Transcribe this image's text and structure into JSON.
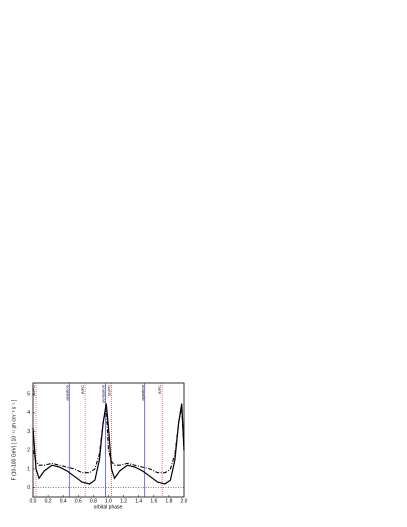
{
  "chart_data": {
    "type": "line",
    "xlabel": "orbital phase",
    "ylabel": "F (10-100 GeV) [ 10⁻¹¹ ph cm⁻² s⁻¹ ]",
    "x": [
      0,
      0.04,
      0.08,
      0.15,
      0.25,
      0.35,
      0.45,
      0.55,
      0.65,
      0.75,
      0.82,
      0.88,
      0.93,
      0.97,
      1.0,
      1.04,
      1.08,
      1.15,
      1.25,
      1.35,
      1.45,
      1.55,
      1.65,
      1.75,
      1.82,
      1.88,
      1.93,
      1.97,
      2.0
    ],
    "series": [
      {
        "color": "#000000",
        "dash": "solid",
        "values": [
          3.2,
          1.0,
          0.5,
          0.9,
          1.2,
          1.1,
          0.9,
          0.6,
          0.3,
          0.2,
          0.4,
          1.5,
          3.5,
          4.5,
          3.2,
          1.0,
          0.5,
          0.9,
          1.2,
          1.1,
          0.9,
          0.6,
          0.3,
          0.2,
          0.4,
          1.5,
          3.5,
          4.5,
          2.0
        ]
      },
      {
        "color": "#000000",
        "dash": "dashdot",
        "values": [
          2.0,
          1.4,
          1.2,
          1.2,
          1.3,
          1.2,
          1.1,
          1.0,
          0.8,
          0.8,
          1.0,
          1.8,
          3.5,
          4.3,
          2.0,
          1.4,
          1.2,
          1.2,
          1.3,
          1.2,
          1.1,
          1.0,
          0.8,
          0.8,
          1.0,
          1.8,
          3.5,
          4.3,
          2.0
        ]
      }
    ],
    "markers": [
      {
        "x": 0.04,
        "label": "SUPC",
        "color": "#e0201b",
        "style": "dotted"
      },
      {
        "x": 0.48,
        "label": "apastron",
        "color": "#1a1adf",
        "style": "solid"
      },
      {
        "x": 0.69,
        "label": "INFC",
        "color": "#e0201b",
        "style": "dotted"
      },
      {
        "x": 0.96,
        "label": "periastron",
        "color": "#1a1adf",
        "style": "solid"
      },
      {
        "x": 1.04,
        "label": "SUPC",
        "color": "#e0201b",
        "style": "dotted"
      },
      {
        "x": 1.48,
        "label": "apastron",
        "color": "#1a1adf",
        "style": "solid"
      },
      {
        "x": 1.71,
        "label": "INFC",
        "color": "#e0201b",
        "style": "dotted"
      }
    ],
    "hline": 0,
    "xlim": [
      0,
      2.0
    ],
    "xticks": [
      {
        "value": 0,
        "label": "0.0"
      },
      0.2,
      0.4,
      0.6,
      0.8,
      {
        "value": 1,
        "label": "1.0"
      },
      1.2,
      1.4,
      1.6,
      1.8,
      {
        "value": 2,
        "label": "2.0"
      }
    ],
    "ylim": [
      -0.5,
      5.6
    ],
    "yticks": [
      0,
      1,
      2,
      3,
      4,
      5
    ]
  }
}
